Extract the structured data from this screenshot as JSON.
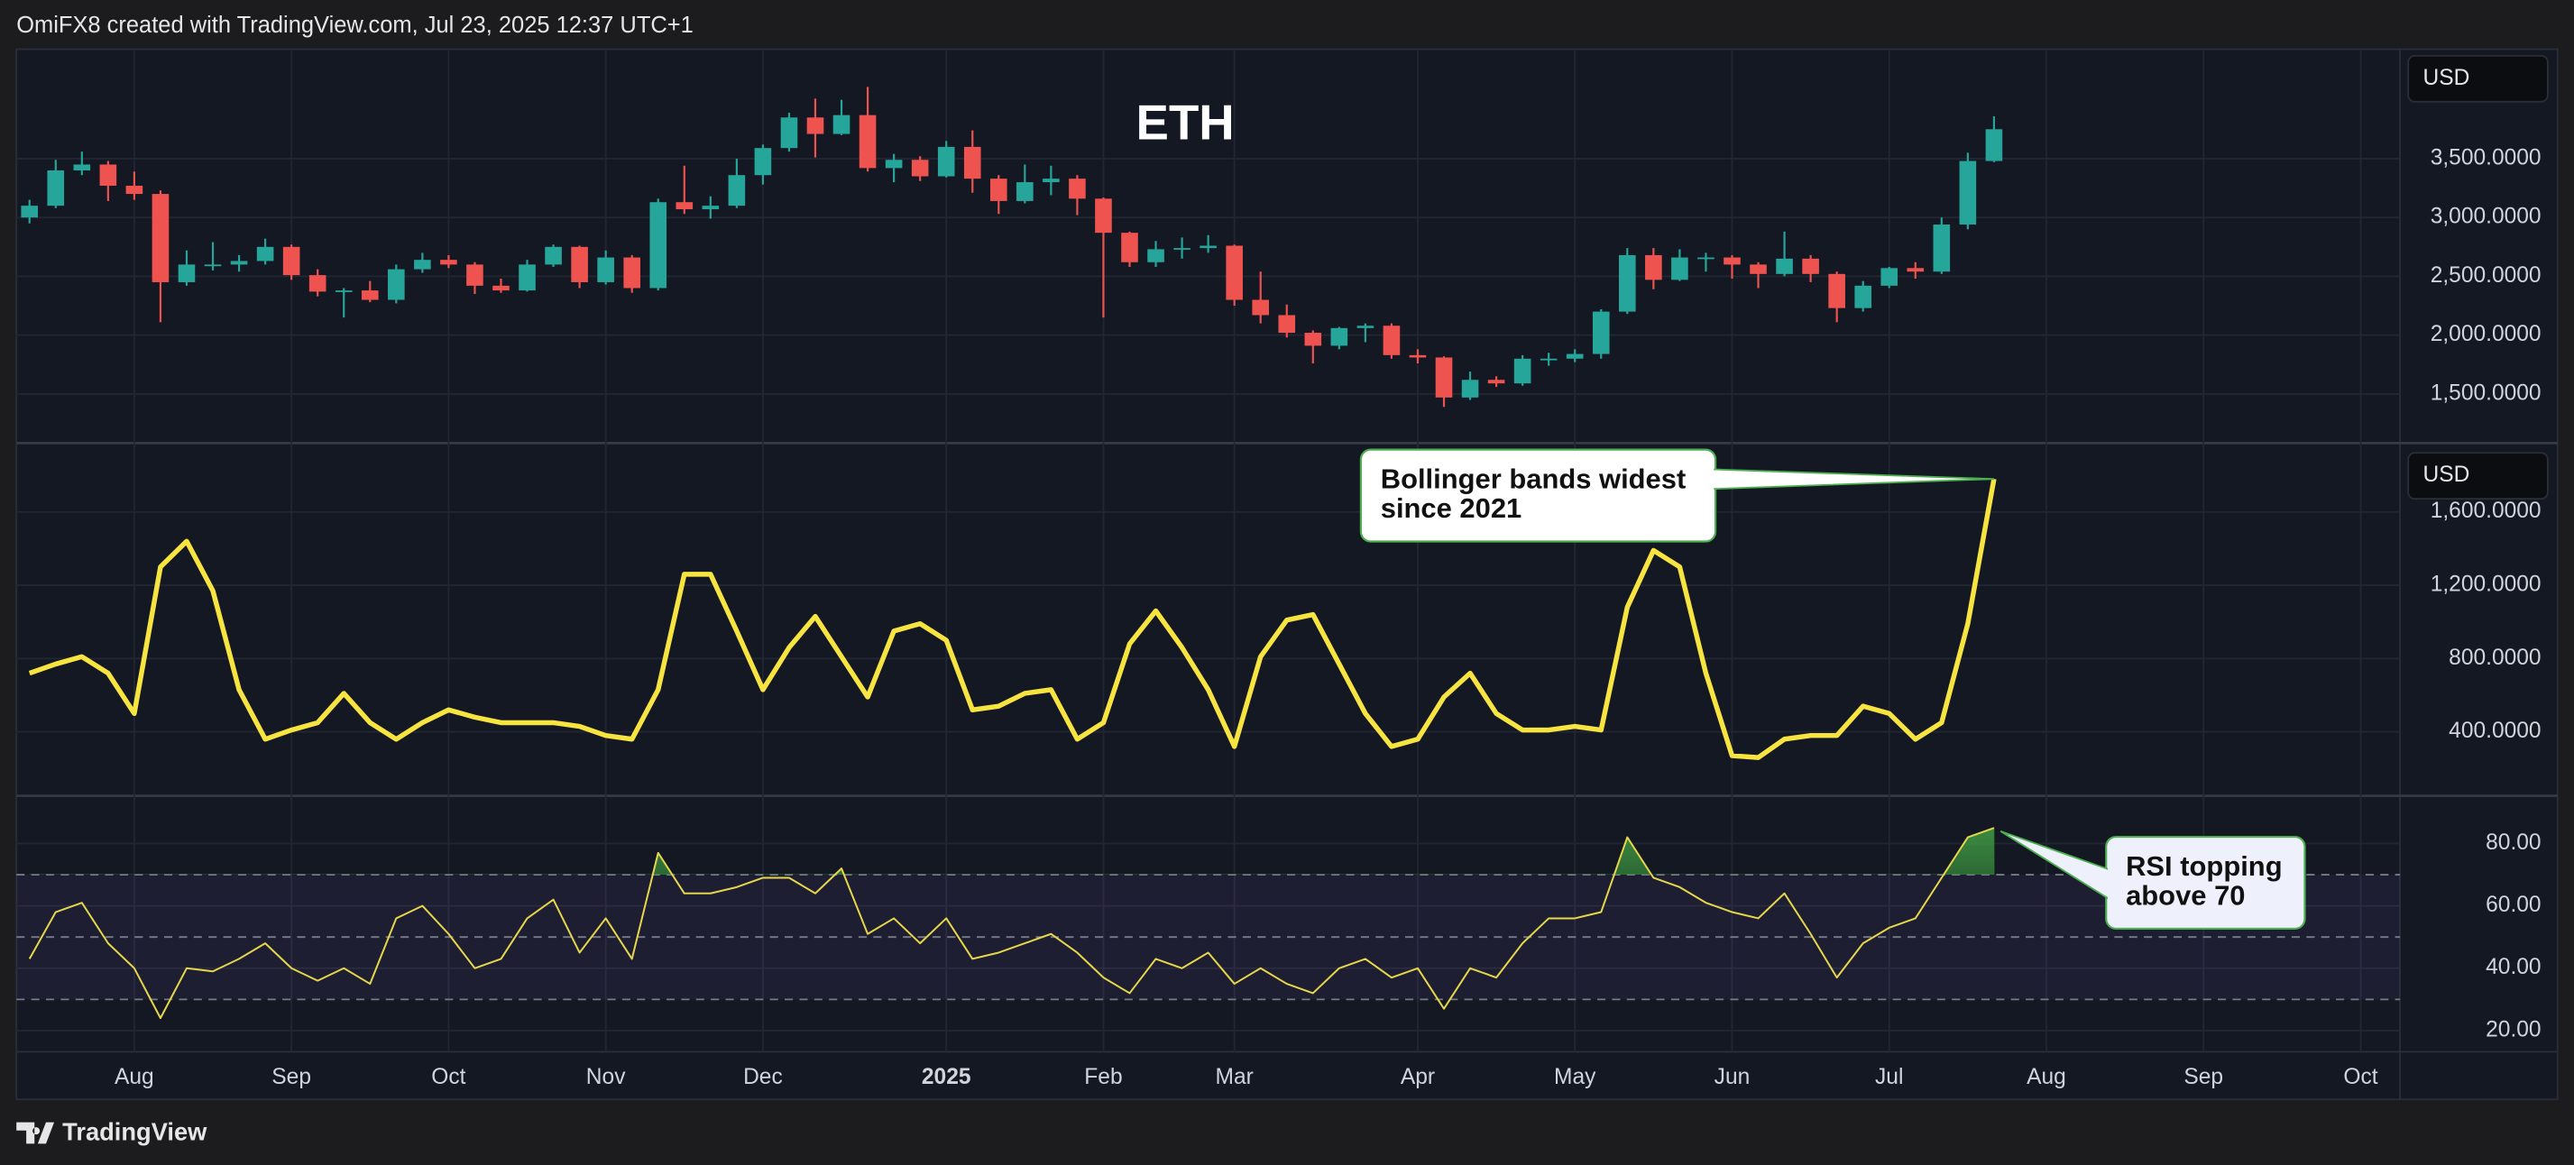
{
  "header": {
    "text": "OmiFX8 created with TradingView.com, Jul 23, 2025 12:37 UTC+1"
  },
  "footer": {
    "brand": "TradingView"
  },
  "chart_data": {
    "type": "candlestick",
    "title": "ETH",
    "unit_label": "USD",
    "categories": [
      null,
      null,
      null,
      null,
      "Aug",
      null,
      null,
      null,
      null,
      null,
      "Sep",
      null,
      null,
      null,
      null,
      null,
      "Oct",
      null,
      null,
      null,
      null,
      null,
      "Nov",
      null,
      null,
      null,
      null,
      null,
      "Dec",
      null,
      null,
      null,
      null,
      null,
      null,
      "2025",
      null,
      null,
      null,
      null,
      null,
      "Feb",
      null,
      null,
      null,
      null,
      "Mar",
      null,
      null,
      null,
      null,
      null,
      null,
      "Apr",
      null,
      null,
      null,
      null,
      null,
      "May",
      null,
      null,
      null,
      null,
      null,
      "Jun",
      null,
      null,
      null,
      null,
      null,
      "Jul",
      null,
      null,
      null,
      null,
      null,
      "Aug",
      null,
      null,
      null,
      null,
      null,
      "Sep",
      null,
      null,
      null,
      null,
      null,
      "Oct",
      null
    ],
    "open": [
      3000,
      3100,
      3400,
      3450,
      3270,
      3200,
      2450,
      2600,
      2600,
      2630,
      2750,
      2510,
      2370,
      2380,
      2300,
      2560,
      2640,
      2600,
      2420,
      2380,
      2600,
      2750,
      2450,
      2660,
      2400,
      3130,
      3070,
      3100,
      3360,
      3590,
      3850,
      3710,
      3870,
      3420,
      3490,
      3350,
      3600,
      3330,
      3140,
      3300,
      3330,
      3160,
      2870,
      2620,
      2730,
      2740,
      2760,
      2300,
      2170,
      2020,
      1910,
      2060,
      2080,
      1830,
      1810,
      1470,
      1620,
      1590,
      1800,
      1800,
      1840,
      2200,
      2680,
      2470,
      2660,
      2660,
      2600,
      2520,
      2650,
      2520,
      2230,
      2420,
      2570,
      2540,
      2940,
      3480,
      null,
      null,
      null,
      null,
      null,
      null,
      null,
      null,
      null,
      null,
      null,
      null,
      null,
      null,
      null
    ],
    "high": [
      3150,
      3490,
      3560,
      3480,
      3390,
      3230,
      2720,
      2790,
      2680,
      2820,
      2770,
      2560,
      2400,
      2460,
      2600,
      2700,
      2680,
      2620,
      2480,
      2640,
      2770,
      2760,
      2720,
      2680,
      3160,
      3440,
      3180,
      3500,
      3620,
      3890,
      4010,
      4000,
      4110,
      3540,
      3520,
      3650,
      3740,
      3360,
      3450,
      3440,
      3360,
      3170,
      2880,
      2800,
      2830,
      2850,
      2770,
      2540,
      2260,
      2040,
      2070,
      2100,
      2100,
      1880,
      1820,
      1690,
      1650,
      1830,
      1850,
      1880,
      2220,
      2740,
      2740,
      2730,
      2700,
      2680,
      2620,
      2880,
      2680,
      2540,
      2460,
      2580,
      2620,
      3000,
      3550,
      3860,
      null,
      null,
      null,
      null,
      null,
      null,
      null,
      null,
      null,
      null,
      null,
      null,
      null,
      null,
      null
    ],
    "low": [
      2950,
      3080,
      3360,
      3140,
      3150,
      2110,
      2420,
      2550,
      2540,
      2600,
      2470,
      2330,
      2150,
      2280,
      2270,
      2530,
      2570,
      2350,
      2360,
      2370,
      2580,
      2400,
      2430,
      2360,
      2380,
      3030,
      2990,
      3080,
      3280,
      3560,
      3510,
      3700,
      3390,
      3300,
      3310,
      3340,
      3210,
      3030,
      3120,
      3190,
      3020,
      2150,
      2580,
      2580,
      2650,
      2700,
      2250,
      2100,
      1980,
      1760,
      1880,
      1940,
      1800,
      1760,
      1390,
      1450,
      1560,
      1570,
      1740,
      1770,
      1800,
      2180,
      2390,
      2460,
      2540,
      2480,
      2400,
      2500,
      2450,
      2110,
      2200,
      2400,
      2480,
      2520,
      2900,
      3470,
      null,
      null,
      null,
      null,
      null,
      null,
      null,
      null,
      null,
      null,
      null,
      null,
      null,
      null,
      null
    ],
    "close": [
      3100,
      3400,
      3450,
      3270,
      3200,
      2450,
      2600,
      2600,
      2630,
      2750,
      2510,
      2370,
      2380,
      2300,
      2560,
      2640,
      2600,
      2420,
      2380,
      2600,
      2750,
      2450,
      2660,
      2400,
      3130,
      3070,
      3100,
      3360,
      3590,
      3850,
      3710,
      3870,
      3420,
      3490,
      3350,
      3600,
      3330,
      3140,
      3300,
      3330,
      3160,
      2870,
      2620,
      2730,
      2740,
      2760,
      2300,
      2170,
      2020,
      1910,
      2060,
      2080,
      1830,
      1810,
      1470,
      1620,
      1590,
      1800,
      1800,
      1840,
      2200,
      2680,
      2470,
      2660,
      2660,
      2600,
      2520,
      2650,
      2520,
      2230,
      2420,
      2570,
      2540,
      2940,
      3480,
      3750,
      null,
      null,
      null,
      null,
      null,
      null,
      null,
      null,
      null,
      null,
      null,
      null,
      null,
      null,
      null
    ],
    "up_color": "#26a69a",
    "down_color": "#ef5350",
    "ylim": [
      1083,
      4430
    ],
    "yticks": [
      {
        "value": 1500,
        "label": "1,500.0000"
      },
      {
        "value": 2000,
        "label": "2,000.0000"
      },
      {
        "value": 2500,
        "label": "2,500.0000"
      },
      {
        "value": 3000,
        "label": "3,000.0000"
      },
      {
        "value": 3500,
        "label": "3,500.0000"
      }
    ],
    "grid": true,
    "panes": [
      {
        "type": "line",
        "color": "#f7e441",
        "unit_label": "USD",
        "values": [
          720,
          770,
          810,
          720,
          500,
          1300,
          1440,
          1170,
          630,
          360,
          410,
          450,
          610,
          450,
          360,
          450,
          520,
          480,
          450,
          450,
          450,
          430,
          380,
          360,
          630,
          1260,
          1260,
          950,
          630,
          860,
          1030,
          810,
          590,
          950,
          990,
          900,
          520,
          540,
          610,
          630,
          360,
          450,
          880,
          1060,
          860,
          630,
          320,
          810,
          1010,
          1040,
          770,
          500,
          320,
          360,
          590,
          720,
          500,
          410,
          410,
          430,
          410,
          1080,
          1390,
          1300,
          720,
          270,
          260,
          360,
          380,
          380,
          540,
          500,
          360,
          450,
          990,
          1780,
          null,
          null,
          null,
          null,
          null,
          null,
          null,
          null,
          null,
          null,
          null,
          null,
          null,
          null,
          null
        ],
        "ylim": [
          51,
          1976
        ],
        "yticks": [
          {
            "value": 400,
            "label": "400.0000"
          },
          {
            "value": 800,
            "label": "800.0000"
          },
          {
            "value": 1200,
            "label": "1,200.0000"
          },
          {
            "value": 1600,
            "label": "1,600.0000"
          }
        ],
        "annotation": {
          "lines": [
            "Bollinger bands widest",
            "since 2021"
          ]
        }
      },
      {
        "type": "line",
        "color": "#e6d64a",
        "values": [
          43,
          58,
          61,
          48,
          40,
          24,
          40,
          39,
          43,
          48,
          40,
          36,
          40,
          35,
          56,
          60,
          51,
          40,
          43,
          56,
          62,
          45,
          56,
          43,
          77,
          64,
          64,
          66,
          69,
          69,
          64,
          72,
          51,
          56,
          48,
          56,
          43,
          45,
          48,
          51,
          45,
          37,
          32,
          43,
          40,
          45,
          35,
          40,
          35,
          32,
          40,
          43,
          37,
          40,
          27,
          40,
          37,
          48,
          56,
          56,
          58,
          82,
          69,
          66,
          61,
          58,
          56,
          64,
          51,
          37,
          48,
          53,
          56,
          69,
          82,
          85,
          null,
          null,
          null,
          null,
          null,
          null,
          null,
          null,
          null,
          null,
          null,
          null,
          null,
          null,
          null
        ],
        "ylim": [
          13.2,
          95.3
        ],
        "yticks": [
          {
            "value": 20,
            "label": "20.00"
          },
          {
            "value": 40,
            "label": "40.00"
          },
          {
            "value": 60,
            "label": "60.00"
          },
          {
            "value": 80,
            "label": "80.00"
          }
        ],
        "levels": [
          30,
          50,
          70
        ],
        "band_color": "#7e57c2",
        "highlight_color": "#2e7d32",
        "annotation": {
          "lines": [
            "RSI topping",
            "above 70"
          ]
        }
      }
    ]
  }
}
